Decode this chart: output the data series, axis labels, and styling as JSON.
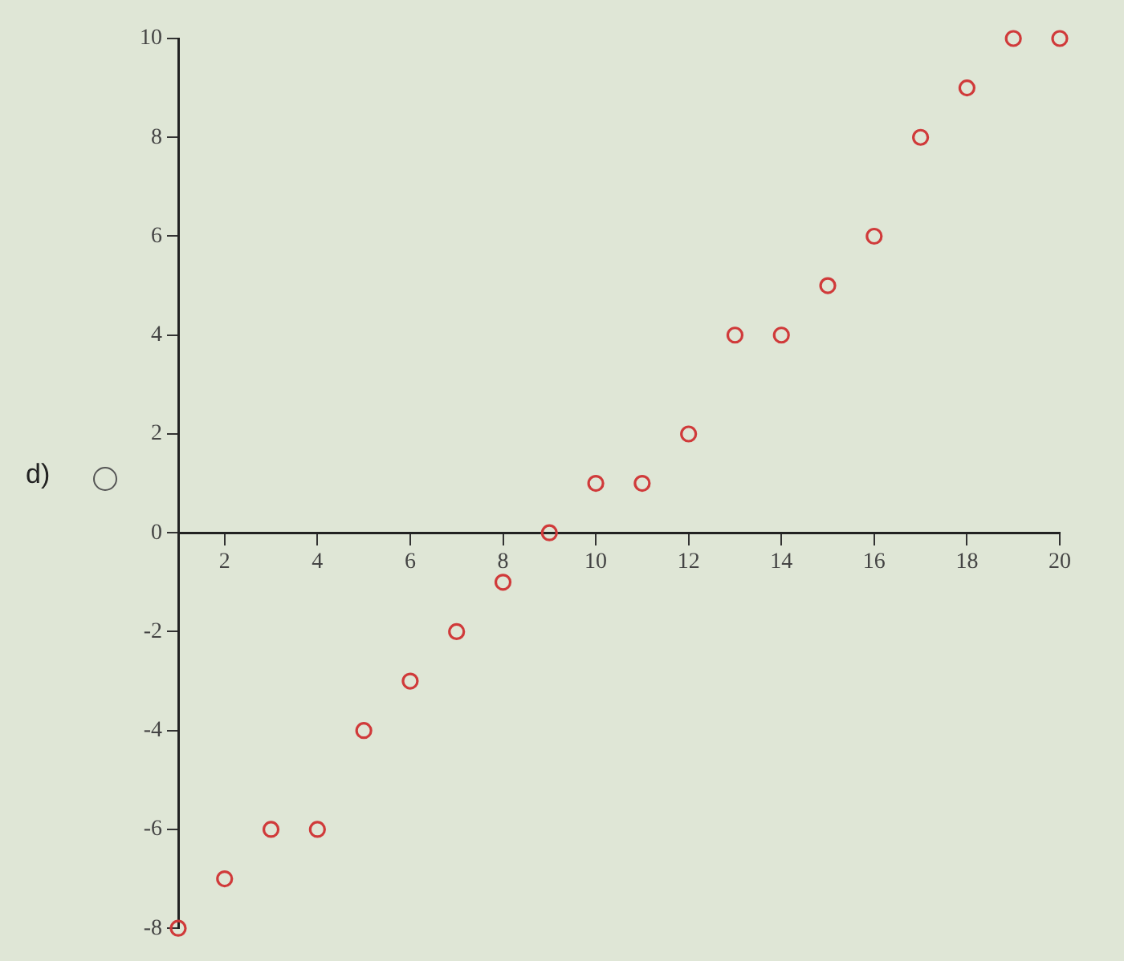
{
  "chart_data": {
    "type": "scatter",
    "x": [
      1,
      2,
      3,
      4,
      5,
      6,
      7,
      8,
      9,
      10,
      11,
      12,
      13,
      14,
      15,
      16,
      17,
      18,
      19,
      20
    ],
    "values": [
      -8,
      -7,
      -6,
      -6,
      -4,
      -3,
      -2,
      -1,
      0,
      1,
      1,
      2,
      4,
      4,
      5,
      6,
      8,
      9,
      10,
      10
    ],
    "color": "#d03a3a",
    "marker": "circle",
    "xlim": [
      1,
      20
    ],
    "ylim": [
      -8,
      10
    ],
    "xticks": [
      2,
      4,
      6,
      8,
      10,
      12,
      14,
      16,
      18,
      20
    ],
    "yticks": [
      -8,
      -6,
      -4,
      -2,
      0,
      2,
      4,
      6,
      8,
      10
    ],
    "grid": false,
    "legend": false,
    "annotations": [
      "d)"
    ]
  }
}
